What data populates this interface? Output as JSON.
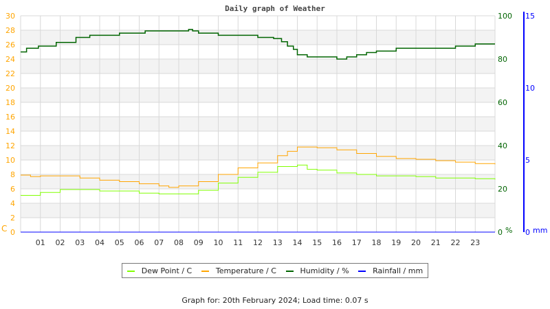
{
  "title": "Daily graph of Weather",
  "footer": "Graph for: 20th February 2024; Load time: 0.07 s",
  "chart_data": {
    "type": "line",
    "title": "Daily graph of Weather",
    "x_ticks": [
      "01",
      "02",
      "03",
      "04",
      "05",
      "06",
      "07",
      "08",
      "09",
      "10",
      "11",
      "12",
      "13",
      "14",
      "15",
      "16",
      "17",
      "18",
      "19",
      "20",
      "21",
      "22",
      "23"
    ],
    "xlim": [
      0,
      24
    ],
    "left_axis": {
      "label": "C",
      "ylim": [
        0,
        30
      ],
      "ticks": [
        0,
        2,
        4,
        6,
        8,
        10,
        12,
        14,
        16,
        18,
        20,
        22,
        24,
        26,
        28,
        30
      ],
      "color": "#ffa500"
    },
    "right_axis": {
      "label": "%",
      "ylim": [
        0,
        100
      ],
      "ticks": [
        0,
        20,
        40,
        60,
        80,
        100
      ],
      "color": "#006400"
    },
    "rain_axis": {
      "label": "mm",
      "ylim": [
        0,
        15
      ],
      "ticks": [
        0,
        5,
        10,
        15
      ],
      "color": "#0000ff"
    },
    "grid": true,
    "legend_placement": "bottom",
    "series": [
      {
        "name": "Dew Point / C",
        "color": "#80ff00",
        "axis": "left",
        "x": [
          0,
          1,
          2,
          3,
          4,
          5,
          6,
          7,
          8,
          9,
          10,
          11,
          12,
          13,
          14,
          14.5,
          15,
          16,
          17,
          18,
          19,
          20,
          21,
          22,
          23,
          24
        ],
        "values": [
          5.1,
          5.5,
          5.9,
          5.9,
          5.7,
          5.7,
          5.4,
          5.3,
          5.3,
          5.8,
          6.8,
          7.6,
          8.3,
          9.1,
          9.3,
          8.7,
          8.6,
          8.2,
          8.0,
          7.8,
          7.8,
          7.7,
          7.5,
          7.5,
          7.4,
          7.3
        ]
      },
      {
        "name": "Temperature / C",
        "color": "#ffa500",
        "axis": "left",
        "x": [
          0,
          0.5,
          1,
          2,
          3,
          4,
          5,
          6,
          7,
          7.5,
          8,
          9,
          10,
          11,
          12,
          13,
          13.5,
          14,
          15,
          16,
          17,
          18,
          19,
          20,
          21,
          22,
          23,
          24
        ],
        "values": [
          7.9,
          7.7,
          7.8,
          7.8,
          7.5,
          7.2,
          7.0,
          6.7,
          6.4,
          6.2,
          6.4,
          7.0,
          8.0,
          8.9,
          9.6,
          10.6,
          11.2,
          11.8,
          11.7,
          11.4,
          10.9,
          10.5,
          10.2,
          10.1,
          9.9,
          9.7,
          9.5,
          9.4
        ]
      },
      {
        "name": "Humidity / %",
        "color": "#006400",
        "axis": "right",
        "x": [
          0,
          0.3,
          0.9,
          1.8,
          2.8,
          3.5,
          5,
          6.3,
          8.5,
          8.7,
          9,
          10,
          11.1,
          12,
          12.8,
          13.2,
          13.5,
          13.8,
          14,
          14.5,
          15.3,
          16,
          16.5,
          17,
          17.5,
          18,
          19,
          20,
          22,
          23,
          24
        ],
        "values": [
          83.3,
          85,
          86,
          87.7,
          90,
          91,
          92,
          93,
          93.7,
          93,
          92,
          91,
          91,
          90,
          89.5,
          88,
          86,
          84.5,
          82,
          81,
          81,
          80,
          81,
          82,
          83,
          83.7,
          85,
          85,
          86,
          87,
          87
        ]
      },
      {
        "name": "Rainfall / mm",
        "color": "#0000ff",
        "axis": "rain",
        "x": [
          0,
          24
        ],
        "values": [
          0,
          0
        ]
      }
    ]
  }
}
